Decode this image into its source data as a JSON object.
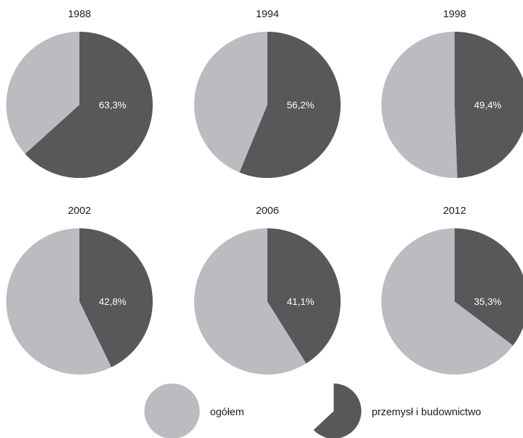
{
  "chart_data": {
    "type": "pie",
    "colors": {
      "ogolem": "#bcbcc0",
      "przemysl": "#58585b"
    },
    "legend": {
      "placement": "bottom",
      "items": [
        {
          "key": "ogolem",
          "label": "ogółem"
        },
        {
          "key": "przemysl",
          "label": "przemysł i budownictwo"
        }
      ]
    },
    "pies": [
      {
        "title": "1988",
        "value": 63.3,
        "label": "63,3%"
      },
      {
        "title": "1994",
        "value": 56.2,
        "label": "56,2%"
      },
      {
        "title": "1998",
        "value": 49.4,
        "label": "49,4%"
      },
      {
        "title": "2002",
        "value": 42.8,
        "label": "42,8%"
      },
      {
        "title": "2006",
        "value": 41.1,
        "label": "41,1%"
      },
      {
        "title": "2012",
        "value": 35.3,
        "label": "35,3%"
      }
    ]
  }
}
